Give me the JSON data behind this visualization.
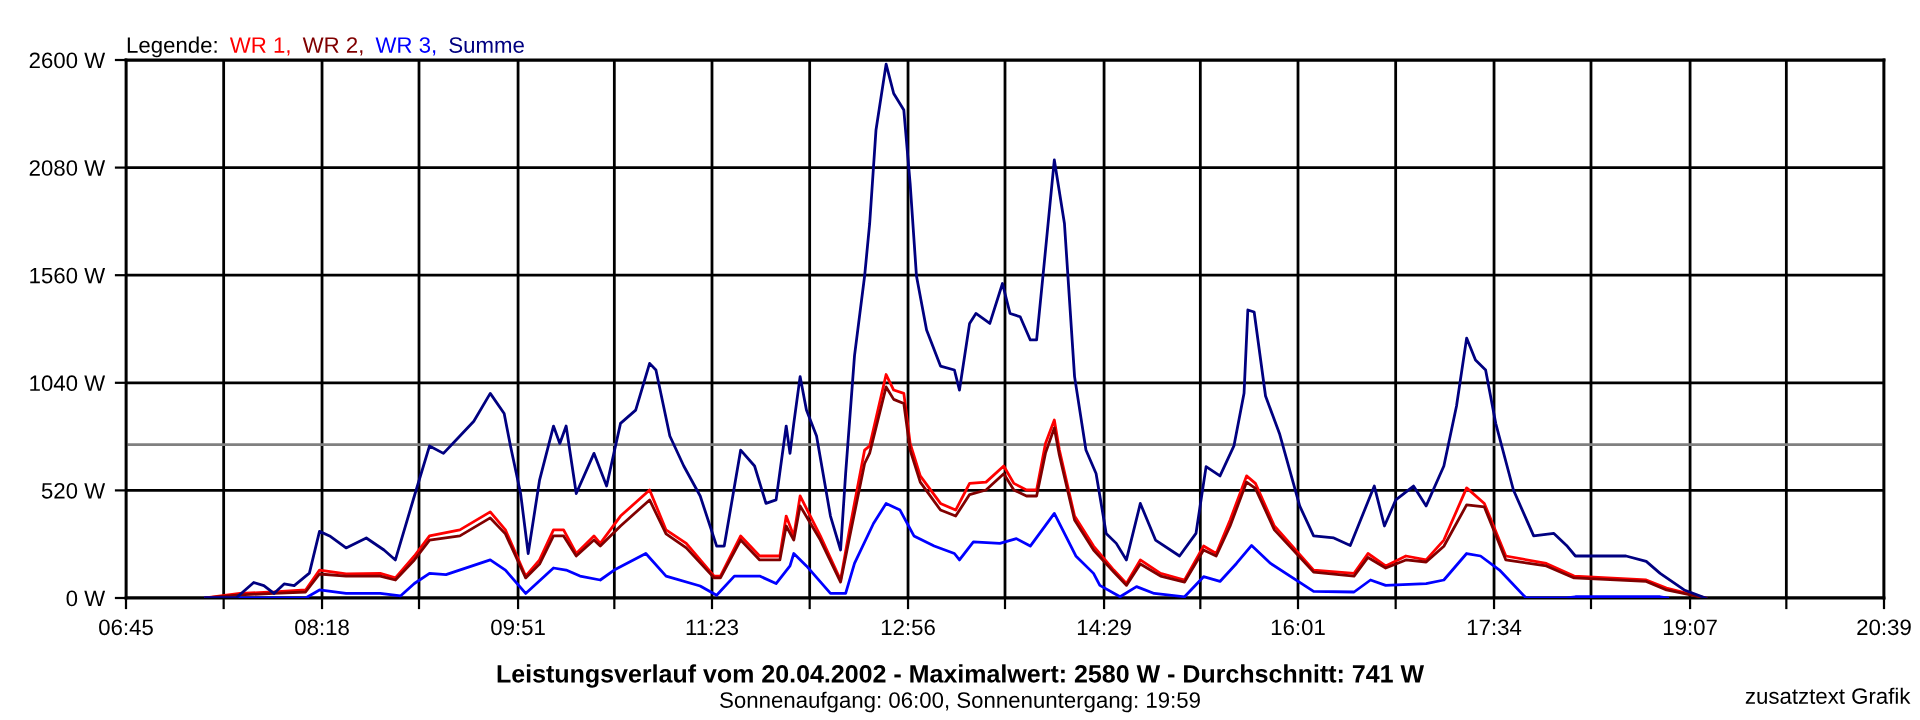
{
  "chart_data": {
    "type": "line",
    "title": "Leistungsverlauf vom 20.04.2002 - Maximalwert: 2580 W - Durchschnitt: 741 W",
    "subtitle": "Sonnenaufgang: 06:00, Sonnenuntergang: 19:59",
    "annotations": [
      "zusatztext Grafik"
    ],
    "legend_title": "Legende:",
    "legend": "top left",
    "grid": true,
    "line_style": "solid",
    "marker": "none",
    "xlim": [
      6.75,
      20.65
    ],
    "ylim": [
      0,
      2600
    ],
    "xticks": [
      {
        "value": 6.75,
        "label": "06:45"
      },
      {
        "value": 7.5222,
        "label": null
      },
      {
        "value": 8.3,
        "label": "08:18"
      },
      {
        "value": 9.0667,
        "label": null
      },
      {
        "value": 9.85,
        "label": "09:51"
      },
      {
        "value": 10.6111,
        "label": null
      },
      {
        "value": 11.3833,
        "label": "11:23"
      },
      {
        "value": 12.1556,
        "label": null
      },
      {
        "value": 12.9333,
        "label": "12:56"
      },
      {
        "value": 13.7,
        "label": null
      },
      {
        "value": 14.4833,
        "label": "14:29"
      },
      {
        "value": 15.2444,
        "label": null
      },
      {
        "value": 16.0167,
        "label": "16:01"
      },
      {
        "value": 16.7889,
        "label": null
      },
      {
        "value": 17.5667,
        "label": "17:34"
      },
      {
        "value": 18.3333,
        "label": null
      },
      {
        "value": 19.1167,
        "label": "19:07"
      },
      {
        "value": 19.8778,
        "label": null
      },
      {
        "value": 20.65,
        "label": "20:39"
      }
    ],
    "yticks": [
      {
        "value": 0,
        "label": "0 W"
      },
      {
        "value": 520,
        "label": "520 W"
      },
      {
        "value": 1040,
        "label": "1040 W"
      },
      {
        "value": 1560,
        "label": "1560 W"
      },
      {
        "value": 2080,
        "label": "2080 W"
      },
      {
        "value": 2600,
        "label": "2600 W"
      }
    ],
    "ref_lines": [
      {
        "axis": "y",
        "value": 741,
        "color": "#808080"
      }
    ],
    "series": [
      {
        "name": "WR 1,",
        "color": "#ff0000",
        "x": [
          7.38,
          7.65,
          7.92,
          8.17,
          8.28,
          8.49,
          8.76,
          8.88,
          9.03,
          9.15,
          9.39,
          9.63,
          9.75,
          9.91,
          10.02,
          10.13,
          10.21,
          10.31,
          10.45,
          10.5,
          10.66,
          10.89,
          11.02,
          11.18,
          11.4,
          11.45,
          11.61,
          11.76,
          11.92,
          11.97,
          12.03,
          12.08,
          12.24,
          12.4,
          12.47,
          12.59,
          12.63,
          12.76,
          12.82,
          12.9,
          12.95,
          13.03,
          13.19,
          13.31,
          13.42,
          13.55,
          13.69,
          13.77,
          13.87,
          13.95,
          14.02,
          14.09,
          14.13,
          14.25,
          14.4,
          14.56,
          14.66,
          14.77,
          14.93,
          15.12,
          15.27,
          15.37,
          15.48,
          15.61,
          15.68,
          15.83,
          16.14,
          16.46,
          16.57,
          16.71,
          16.87,
          17.03,
          17.17,
          17.35,
          17.49,
          17.66,
          17.98,
          18.2,
          18.77,
          18.93,
          19.24
        ],
        "values": [
          0,
          22,
          29,
          39,
          135,
          116,
          119,
          97,
          203,
          300,
          329,
          416,
          329,
          106,
          184,
          329,
          329,
          215,
          300,
          264,
          396,
          522,
          329,
          264,
          106,
          106,
          300,
          203,
          203,
          396,
          300,
          493,
          300,
          87,
          329,
          715,
          735,
          1080,
          1005,
          989,
          747,
          590,
          457,
          425,
          554,
          560,
          638,
          554,
          522,
          522,
          747,
          860,
          715,
          396,
          251,
          135,
          70,
          184,
          119,
          87,
          251,
          215,
          377,
          590,
          554,
          348,
          135,
          119,
          215,
          155,
          203,
          184,
          280,
          532,
          457,
          203,
          167,
          106,
          87,
          48,
          0
        ]
      },
      {
        "name": "WR 2,",
        "color": "#800000",
        "x": [
          7.38,
          7.65,
          7.92,
          8.17,
          8.28,
          8.49,
          8.76,
          8.88,
          9.03,
          9.15,
          9.39,
          9.63,
          9.75,
          9.91,
          10.02,
          10.13,
          10.21,
          10.31,
          10.45,
          10.5,
          10.66,
          10.89,
          11.02,
          11.18,
          11.4,
          11.45,
          11.61,
          11.76,
          11.92,
          11.97,
          12.03,
          12.08,
          12.24,
          12.4,
          12.47,
          12.59,
          12.63,
          12.76,
          12.82,
          12.9,
          12.95,
          13.03,
          13.19,
          13.31,
          13.42,
          13.55,
          13.69,
          13.77,
          13.87,
          13.95,
          14.02,
          14.09,
          14.13,
          14.25,
          14.4,
          14.56,
          14.66,
          14.77,
          14.93,
          15.12,
          15.27,
          15.37,
          15.48,
          15.61,
          15.68,
          15.83,
          16.14,
          16.46,
          16.57,
          16.71,
          16.87,
          17.03,
          17.17,
          17.35,
          17.49,
          17.66,
          17.98,
          18.2,
          18.77,
          18.93,
          19.24
        ],
        "values": [
          0,
          15,
          22,
          29,
          116,
          106,
          106,
          87,
          184,
          280,
          300,
          387,
          310,
          97,
          164,
          300,
          300,
          203,
          280,
          251,
          348,
          474,
          310,
          242,
          97,
          97,
          280,
          184,
          184,
          348,
          280,
          445,
          280,
          77,
          290,
          650,
          700,
          1020,
          960,
          940,
          715,
          560,
          425,
          396,
          500,
          522,
          600,
          522,
          493,
          493,
          700,
          822,
          690,
          377,
          232,
          125,
          61,
          164,
          106,
          77,
          232,
          203,
          348,
          560,
          530,
          329,
          125,
          106,
          196,
          145,
          184,
          174,
          250,
          450,
          440,
          184,
          155,
          97,
          80,
          39,
          0
        ]
      },
      {
        "name": "WR 3,",
        "color": "#0000ff",
        "x": [
          7.38,
          8.17,
          8.28,
          8.49,
          8.76,
          8.92,
          9.03,
          9.15,
          9.28,
          9.63,
          9.75,
          9.91,
          10.13,
          10.23,
          10.34,
          10.5,
          10.61,
          10.86,
          11.02,
          11.29,
          11.42,
          11.56,
          11.76,
          11.89,
          12.0,
          12.03,
          12.13,
          12.32,
          12.44,
          12.51,
          12.66,
          12.76,
          12.87,
          12.98,
          13.14,
          13.3,
          13.34,
          13.45,
          13.66,
          13.79,
          13.9,
          14.09,
          14.26,
          14.4,
          14.45,
          14.61,
          14.74,
          14.88,
          15.12,
          15.27,
          15.4,
          15.53,
          15.65,
          15.8,
          16.14,
          16.46,
          16.59,
          16.71,
          17.03,
          17.17,
          17.35,
          17.46,
          17.61,
          17.82,
          18.14,
          18.21,
          18.88,
          18.94
        ],
        "values": [
          0,
          0,
          39,
          22,
          22,
          10,
          70,
          119,
          113,
          184,
          135,
          22,
          145,
          135,
          106,
          87,
          135,
          215,
          106,
          58,
          13,
          106,
          106,
          70,
          155,
          215,
          155,
          22,
          22,
          167,
          360,
          457,
          425,
          300,
          251,
          215,
          184,
          271,
          264,
          287,
          251,
          409,
          203,
          119,
          61,
          6,
          55,
          22,
          6,
          103,
          80,
          167,
          254,
          167,
          32,
          29,
          87,
          61,
          70,
          87,
          215,
          203,
          135,
          0,
          0,
          6,
          6,
          0
        ]
      },
      {
        "name": "Summe",
        "color": "#000080",
        "x": [
          7.38,
          7.62,
          7.76,
          7.84,
          7.92,
          8.0,
          8.08,
          8.2,
          8.28,
          8.36,
          8.49,
          8.65,
          8.79,
          8.88,
          9.03,
          9.15,
          9.26,
          9.39,
          9.5,
          9.63,
          9.74,
          9.79,
          9.87,
          9.93,
          10.02,
          10.13,
          10.18,
          10.23,
          10.31,
          10.45,
          10.55,
          10.66,
          10.78,
          10.89,
          10.94,
          11.05,
          11.16,
          11.29,
          11.42,
          11.48,
          11.61,
          11.72,
          11.81,
          11.89,
          11.97,
          12.0,
          12.03,
          12.08,
          12.13,
          12.21,
          12.32,
          12.4,
          12.44,
          12.51,
          12.59,
          12.63,
          12.68,
          12.76,
          12.82,
          12.9,
          12.95,
          13.0,
          13.08,
          13.19,
          13.3,
          13.34,
          13.42,
          13.47,
          13.58,
          13.68,
          13.74,
          13.82,
          13.9,
          13.95,
          14.01,
          14.09,
          14.17,
          14.25,
          14.34,
          14.42,
          14.5,
          14.58,
          14.66,
          14.77,
          14.89,
          15.08,
          15.21,
          15.29,
          15.4,
          15.51,
          15.59,
          15.62,
          15.67,
          15.76,
          15.87,
          16.03,
          16.14,
          16.3,
          16.43,
          16.62,
          16.7,
          16.79,
          16.93,
          17.03,
          17.17,
          17.27,
          17.35,
          17.42,
          17.5,
          17.58,
          17.72,
          17.88,
          18.04,
          18.14,
          18.21,
          18.61,
          18.77,
          18.88,
          19.07,
          19.24
        ],
        "values": [
          0,
          0,
          75,
          60,
          22,
          68,
          60,
          120,
          322,
          300,
          242,
          290,
          232,
          184,
          493,
          735,
          699,
          783,
          854,
          989,
          892,
          735,
          505,
          215,
          570,
          831,
          747,
          831,
          505,
          699,
          541,
          844,
          908,
          1134,
          1102,
          783,
          638,
          493,
          251,
          251,
          715,
          638,
          457,
          474,
          831,
          699,
          844,
          1070,
          908,
          783,
          396,
          232,
          602,
          1170,
          1556,
          1810,
          2262,
          2580,
          2438,
          2358,
          2003,
          1556,
          1295,
          1121,
          1102,
          1005,
          1327,
          1375,
          1327,
          1520,
          1375,
          1359,
          1247,
          1247,
          1617,
          2117,
          1810,
          1070,
          715,
          602,
          312,
          264,
          184,
          457,
          280,
          203,
          312,
          635,
          590,
          735,
          989,
          1392,
          1382,
          976,
          795,
          445,
          300,
          290,
          254,
          541,
          348,
          474,
          541,
          445,
          638,
          928,
          1256,
          1150,
          1102,
          844,
          522,
          300,
          312,
          254,
          203,
          203,
          177,
          119,
          39,
          0
        ]
      }
    ]
  }
}
